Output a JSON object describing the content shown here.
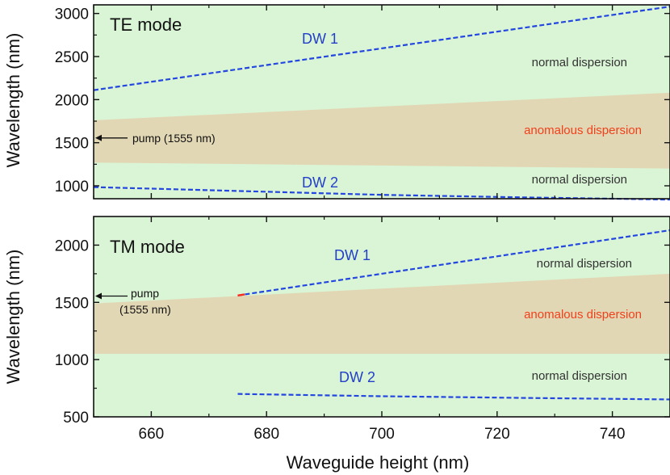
{
  "chart_data": [
    {
      "type": "area",
      "panel": "top",
      "title": "TE mode",
      "xlabel": "",
      "ylabel": "Wavelength (nm)",
      "xlim": [
        650,
        750
      ],
      "ylim": [
        850,
        3100
      ],
      "yticks": [
        1000,
        1500,
        2000,
        2500,
        3000
      ],
      "xticks": [
        660,
        680,
        700,
        720,
        740
      ],
      "background_label": "normal dispersion",
      "band": {
        "name": "anomalous dispersion",
        "x": [
          650,
          750
        ],
        "upper": [
          1760,
          2080
        ],
        "lower": [
          1270,
          1200
        ]
      },
      "series": [
        {
          "name": "DW 1",
          "x": [
            650,
            750
          ],
          "y": [
            2110,
            3080
          ]
        },
        {
          "name": "DW 2",
          "x": [
            650,
            675,
            700,
            725,
            750
          ],
          "y": [
            985,
            940,
            895,
            865,
            840
          ]
        }
      ],
      "annotations": {
        "pump": "pump (1555 nm)",
        "pump_wavelength": 1555,
        "dw1_label": "DW 1",
        "dw2_label": "DW 2",
        "normal_upper": "normal dispersion",
        "anomalous": "anomalous dispersion",
        "normal_lower": "normal dispersion"
      }
    },
    {
      "type": "area",
      "panel": "bottom",
      "title": "TM mode",
      "xlabel": "Waveguide height (nm)",
      "ylabel": "Wavelength (nm)",
      "xlim": [
        650,
        750
      ],
      "ylim": [
        500,
        2250
      ],
      "yticks": [
        500,
        1000,
        1500,
        2000
      ],
      "xticks": [
        660,
        680,
        700,
        720,
        740
      ],
      "background_label": "normal dispersion",
      "band": {
        "name": "anomalous dispersion",
        "x": [
          650,
          750
        ],
        "upper": [
          1490,
          1750
        ],
        "lower": [
          1050,
          1050
        ]
      },
      "series": [
        {
          "name": "DW 1",
          "x": [
            675,
            750
          ],
          "y": [
            1560,
            2130
          ]
        },
        {
          "name": "DW 2",
          "x": [
            675,
            700,
            725,
            750
          ],
          "y": [
            700,
            680,
            665,
            652
          ]
        }
      ],
      "annotations": {
        "pump_line1": "pump",
        "pump_line2": "(1555 nm)",
        "pump_wavelength": 1555,
        "dw1_label": "DW 1",
        "dw2_label": "DW 2",
        "normal_upper": "normal dispersion",
        "anomalous": "anomalous dispersion",
        "normal_lower": "normal dispersion"
      }
    }
  ],
  "colors": {
    "normal_bg": "#daf5d6",
    "anomalous_bg": "#e2d7b4",
    "dw_line": "#2446e0",
    "dw_label": "#2440c8",
    "anomalous_text": "#f0401c",
    "normal_text": "#333333",
    "axis": "#111111",
    "start_marker": "#ff2a1a"
  }
}
